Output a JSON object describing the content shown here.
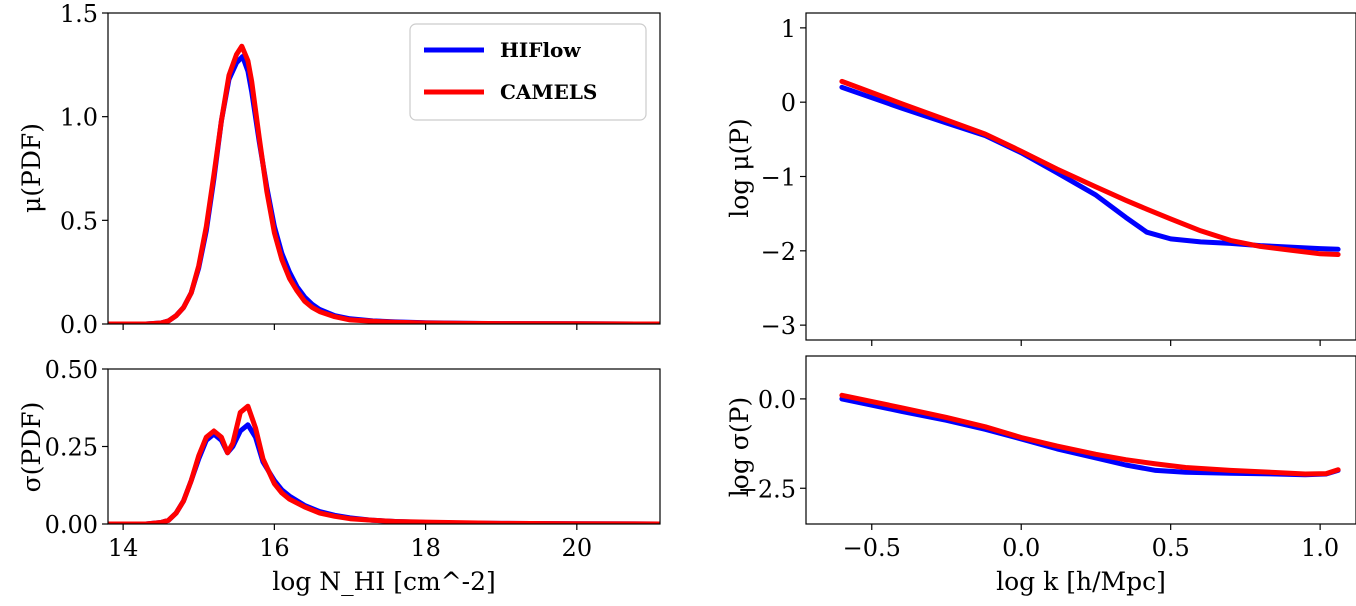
{
  "colors": {
    "hiflow": "#0000ff",
    "camels": "#ff0000"
  },
  "legend": {
    "location": "upper right",
    "entries": [
      "HIFlow",
      "CAMELS"
    ]
  },
  "chart_data": [
    {
      "id": "pdf_mean",
      "type": "line",
      "xlabel": "",
      "ylabel": "μ(PDF)",
      "xlim": [
        13.8,
        21.1
      ],
      "ylim": [
        0,
        1.5
      ],
      "xticks": [
        14,
        16,
        18,
        20
      ],
      "yticks": [
        0.0,
        0.5,
        1.0,
        1.5
      ],
      "ytick_labels": [
        "0.0",
        "0.5",
        "1.0",
        "1.5"
      ],
      "grid": false,
      "series": [
        {
          "name": "HIFlow",
          "color": "#0000ff",
          "x": [
            13.8,
            14.3,
            14.5,
            14.6,
            14.7,
            14.8,
            14.9,
            15.0,
            15.1,
            15.2,
            15.3,
            15.4,
            15.5,
            15.58,
            15.65,
            15.7,
            15.8,
            15.9,
            16.0,
            16.1,
            16.2,
            16.3,
            16.4,
            16.5,
            16.6,
            16.8,
            17.0,
            17.3,
            17.6,
            18.0,
            18.5,
            19.0,
            20.0,
            21.1
          ],
          "y": [
            0.0,
            0.0,
            0.005,
            0.015,
            0.04,
            0.08,
            0.15,
            0.27,
            0.45,
            0.7,
            0.98,
            1.18,
            1.26,
            1.29,
            1.22,
            1.12,
            0.88,
            0.66,
            0.47,
            0.34,
            0.25,
            0.18,
            0.13,
            0.095,
            0.07,
            0.04,
            0.025,
            0.015,
            0.01,
            0.006,
            0.004,
            0.002,
            0.001,
            0.0
          ]
        },
        {
          "name": "CAMELS",
          "color": "#ff0000",
          "x": [
            13.8,
            14.3,
            14.5,
            14.6,
            14.7,
            14.8,
            14.9,
            15.0,
            15.1,
            15.2,
            15.3,
            15.4,
            15.5,
            15.57,
            15.65,
            15.7,
            15.8,
            15.9,
            16.0,
            16.1,
            16.2,
            16.3,
            16.4,
            16.5,
            16.6,
            16.8,
            17.0,
            17.3,
            17.6,
            18.0,
            18.5,
            19.0,
            20.0,
            21.1
          ],
          "y": [
            0.0,
            0.0,
            0.005,
            0.015,
            0.04,
            0.08,
            0.15,
            0.28,
            0.47,
            0.72,
            0.98,
            1.2,
            1.3,
            1.34,
            1.27,
            1.17,
            0.9,
            0.64,
            0.44,
            0.31,
            0.22,
            0.16,
            0.11,
            0.08,
            0.06,
            0.035,
            0.02,
            0.013,
            0.008,
            0.005,
            0.003,
            0.002,
            0.001,
            0.0
          ]
        }
      ]
    },
    {
      "id": "pdf_std",
      "type": "line",
      "xlabel": "log N_HI [cm^-2]",
      "ylabel": "σ(PDF)",
      "xlim": [
        13.8,
        21.1
      ],
      "ylim": [
        0,
        0.5
      ],
      "xticks": [
        14,
        16,
        18,
        20
      ],
      "xtick_labels": [
        "14",
        "16",
        "18",
        "20"
      ],
      "yticks": [
        0.0,
        0.25,
        0.5
      ],
      "ytick_labels": [
        "0.00",
        "0.25",
        "0.50"
      ],
      "grid": false,
      "series": [
        {
          "name": "HIFlow",
          "color": "#0000ff",
          "x": [
            13.8,
            14.3,
            14.5,
            14.6,
            14.7,
            14.8,
            14.9,
            15.0,
            15.1,
            15.2,
            15.3,
            15.38,
            15.45,
            15.55,
            15.65,
            15.75,
            15.85,
            16.0,
            16.1,
            16.2,
            16.4,
            16.6,
            16.8,
            17.0,
            17.3,
            17.6,
            18.0,
            18.5,
            19.0,
            20.0,
            21.1
          ],
          "y": [
            0.0,
            0.0,
            0.005,
            0.012,
            0.035,
            0.075,
            0.14,
            0.21,
            0.27,
            0.29,
            0.27,
            0.23,
            0.25,
            0.3,
            0.32,
            0.28,
            0.2,
            0.14,
            0.11,
            0.09,
            0.06,
            0.04,
            0.028,
            0.02,
            0.012,
            0.008,
            0.005,
            0.003,
            0.002,
            0.001,
            0.0
          ]
        },
        {
          "name": "CAMELS",
          "color": "#ff0000",
          "x": [
            13.8,
            14.3,
            14.5,
            14.6,
            14.7,
            14.8,
            14.9,
            15.0,
            15.1,
            15.2,
            15.3,
            15.38,
            15.45,
            15.55,
            15.65,
            15.75,
            15.85,
            16.0,
            16.1,
            16.2,
            16.4,
            16.6,
            16.8,
            17.0,
            17.3,
            17.6,
            18.0,
            18.5,
            19.0,
            20.0,
            21.1
          ],
          "y": [
            0.0,
            0.0,
            0.005,
            0.012,
            0.035,
            0.075,
            0.14,
            0.22,
            0.28,
            0.3,
            0.28,
            0.23,
            0.26,
            0.36,
            0.38,
            0.31,
            0.21,
            0.13,
            0.1,
            0.08,
            0.055,
            0.035,
            0.025,
            0.017,
            0.012,
            0.008,
            0.006,
            0.004,
            0.002,
            0.001,
            0.0
          ]
        }
      ]
    },
    {
      "id": "power_mean",
      "type": "line",
      "xlabel": "",
      "ylabel": "log μ(P)",
      "xlim": [
        -0.72,
        1.12
      ],
      "ylim": [
        -3.2,
        1.2
      ],
      "xticks": [
        -0.5,
        0.0,
        0.5,
        1.0
      ],
      "yticks": [
        1,
        0,
        -1,
        -2,
        -3
      ],
      "ytick_labels": [
        "1",
        "0",
        "−1",
        "−2",
        "−3"
      ],
      "grid": false,
      "series": [
        {
          "name": "HIFlow",
          "color": "#0000ff",
          "x": [
            -0.6,
            -0.4,
            -0.25,
            -0.12,
            0.0,
            0.12,
            0.25,
            0.35,
            0.42,
            0.5,
            0.6,
            0.7,
            0.8,
            0.9,
            1.0,
            1.06
          ],
          "y": [
            0.2,
            -0.08,
            -0.28,
            -0.45,
            -0.68,
            -0.95,
            -1.25,
            -1.55,
            -1.75,
            -1.84,
            -1.88,
            -1.9,
            -1.93,
            -1.95,
            -1.97,
            -1.98
          ]
        },
        {
          "name": "CAMELS",
          "color": "#ff0000",
          "x": [
            -0.6,
            -0.4,
            -0.25,
            -0.12,
            0.0,
            0.12,
            0.25,
            0.35,
            0.42,
            0.5,
            0.6,
            0.7,
            0.8,
            0.9,
            1.0,
            1.06
          ],
          "y": [
            0.28,
            -0.02,
            -0.24,
            -0.43,
            -0.66,
            -0.9,
            -1.14,
            -1.32,
            -1.44,
            -1.57,
            -1.73,
            -1.86,
            -1.94,
            -1.99,
            -2.04,
            -2.05
          ]
        }
      ]
    },
    {
      "id": "power_std",
      "type": "line",
      "xlabel": "log k [h/Mpc]",
      "ylabel": "log σ(P)",
      "xlim": [
        -0.72,
        1.12
      ],
      "ylim": [
        -3.5,
        1.2
      ],
      "xticks": [
        -0.5,
        0.0,
        0.5,
        1.0
      ],
      "xtick_labels": [
        "−0.5",
        "0.0",
        "0.5",
        "1.0"
      ],
      "yticks": [
        0,
        -2.5
      ],
      "ytick_labels": [
        "0.0",
        "−2.5"
      ],
      "grid": false,
      "series": [
        {
          "name": "HIFlow",
          "color": "#0000ff",
          "x": [
            -0.6,
            -0.4,
            -0.25,
            -0.12,
            0.0,
            0.12,
            0.25,
            0.35,
            0.45,
            0.55,
            0.7,
            0.85,
            0.95,
            1.02,
            1.06
          ],
          "y": [
            0.0,
            -0.35,
            -0.6,
            -0.85,
            -1.12,
            -1.4,
            -1.65,
            -1.85,
            -2.0,
            -2.05,
            -2.08,
            -2.1,
            -2.12,
            -2.1,
            -2.0
          ]
        },
        {
          "name": "CAMELS",
          "color": "#ff0000",
          "x": [
            -0.6,
            -0.4,
            -0.25,
            -0.12,
            0.0,
            0.12,
            0.25,
            0.35,
            0.45,
            0.55,
            0.7,
            0.85,
            0.95,
            1.02,
            1.06
          ],
          "y": [
            0.1,
            -0.25,
            -0.52,
            -0.78,
            -1.08,
            -1.32,
            -1.55,
            -1.7,
            -1.82,
            -1.92,
            -2.0,
            -2.06,
            -2.1,
            -2.09,
            -1.98
          ]
        }
      ]
    }
  ]
}
